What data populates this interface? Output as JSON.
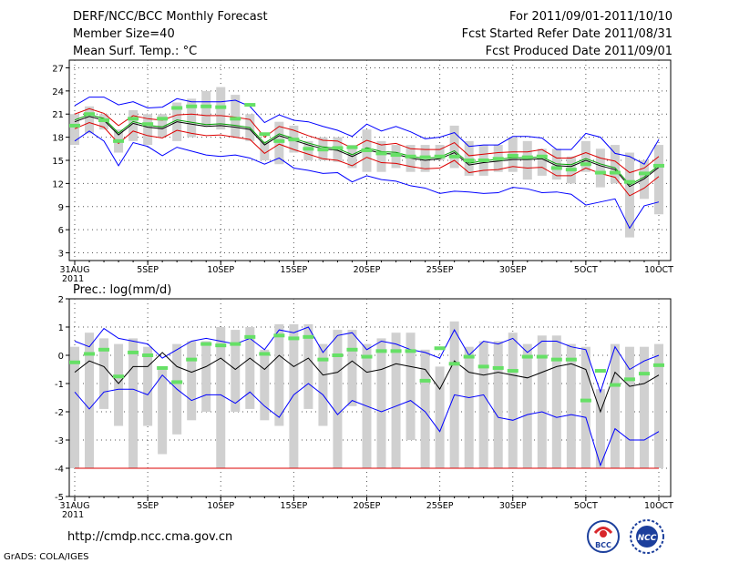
{
  "header": {
    "title": "DERF/NCC/BCC Monthly Forecast",
    "member_size": "Member Size=40",
    "variable": "Mean Surf. Temp.: °C",
    "period": "For 2011/09/01-2011/10/10",
    "start_date": "Fcst Started Refer Date 2011/08/31",
    "produced_date": "Fcst Produced Date 2011/09/01"
  },
  "footer": {
    "url": "http://cmdp.ncc.cma.gov.cn",
    "credit": "GrADS: COLA/IGES",
    "logo_bcc": "BCC",
    "logo_ncc": "NCC"
  },
  "colors": {
    "max_line": "#0000ff",
    "min_line": "#dd0000",
    "mean_line": "#000000",
    "member_line": "#00a000",
    "bar": "#d0d0d0",
    "marker": "#66e066"
  },
  "chart_data": [
    {
      "type": "line",
      "title": "Mean Surf. Temp.: °C",
      "x": [
        0,
        1,
        2,
        3,
        4,
        5,
        6,
        7,
        8,
        9,
        10,
        11,
        12,
        13,
        14,
        15,
        16,
        17,
        18,
        19,
        20,
        21,
        22,
        23,
        24,
        25,
        26,
        27,
        28,
        29,
        30,
        31,
        32,
        33,
        34,
        35,
        36,
        37,
        38,
        39,
        40
      ],
      "x_tick_labels": [
        "31AUG\n2011",
        "5SEP",
        "10SEP",
        "15SEP",
        "20SEP",
        "25SEP",
        "30SEP",
        "5OCT",
        "10OCT"
      ],
      "x_tick_positions": [
        0,
        5,
        10,
        15,
        20,
        25,
        30,
        35,
        40
      ],
      "ylim": [
        2,
        28
      ],
      "y_ticks": [
        3,
        6,
        9,
        12,
        15,
        18,
        21,
        24,
        27
      ],
      "grid": true,
      "series": [
        {
          "name": "max",
          "values": [
            22.1,
            23.2,
            23.2,
            22.2,
            22.6,
            21.8,
            21.9,
            23.0,
            22.6,
            22.6,
            22.6,
            22.8,
            22.0,
            19.9,
            20.9,
            20.2,
            20.0,
            19.4,
            18.9,
            18.1,
            19.7,
            18.8,
            19.4,
            18.7,
            17.8,
            18.0,
            18.6,
            16.8,
            17.0,
            17.0,
            18.1,
            18.1,
            17.9,
            16.4,
            16.4,
            18.5,
            18.0,
            15.9,
            15.5,
            14.5,
            17.7
          ]
        },
        {
          "name": "p90",
          "values": [
            21.0,
            21.7,
            21.1,
            19.5,
            20.8,
            20.4,
            20.2,
            20.9,
            21.0,
            20.8,
            20.8,
            20.6,
            20.3,
            18.0,
            19.4,
            18.9,
            18.2,
            17.6,
            17.5,
            16.6,
            17.6,
            17.0,
            17.2,
            16.5,
            16.4,
            16.4,
            17.3,
            15.6,
            15.8,
            16.0,
            16.1,
            16.1,
            16.4,
            15.3,
            15.3,
            16.0,
            15.3,
            14.9,
            13.4,
            14.0,
            15.5
          ]
        },
        {
          "name": "mean",
          "values": [
            20.0,
            20.7,
            20.2,
            18.3,
            19.8,
            19.3,
            19.1,
            20.0,
            19.7,
            19.4,
            19.5,
            19.3,
            19.0,
            17.0,
            18.2,
            17.6,
            17.0,
            16.5,
            16.3,
            15.5,
            16.4,
            15.9,
            15.8,
            15.3,
            15.0,
            15.2,
            16.0,
            14.4,
            14.7,
            14.9,
            15.1,
            15.1,
            15.2,
            14.3,
            14.2,
            15.0,
            14.3,
            13.8,
            11.6,
            12.6,
            14.1
          ]
        },
        {
          "name": "p10",
          "values": [
            19.1,
            19.9,
            19.3,
            17.2,
            18.8,
            18.2,
            17.9,
            18.9,
            18.5,
            18.2,
            18.3,
            18.0,
            17.7,
            15.9,
            17.1,
            16.4,
            15.8,
            15.2,
            15.0,
            14.3,
            15.4,
            14.7,
            14.6,
            14.2,
            13.9,
            14.0,
            15.0,
            13.4,
            13.7,
            13.8,
            14.2,
            14.0,
            14.1,
            13.0,
            13.0,
            14.0,
            13.3,
            12.8,
            10.4,
            11.4,
            12.9
          ]
        },
        {
          "name": "min",
          "values": [
            17.5,
            18.8,
            17.5,
            14.3,
            17.3,
            16.8,
            15.6,
            16.7,
            16.2,
            15.7,
            15.5,
            15.7,
            15.3,
            14.5,
            15.3,
            14.0,
            13.7,
            13.3,
            13.4,
            12.2,
            13.0,
            12.5,
            12.3,
            11.7,
            11.4,
            10.7,
            11.0,
            10.9,
            10.7,
            10.8,
            11.5,
            11.3,
            10.8,
            10.9,
            10.6,
            9.2,
            9.6,
            10.0,
            6.2,
            9.1,
            9.6
          ]
        }
      ],
      "bars": {
        "low": [
          17,
          18.5,
          19,
          16,
          17.5,
          17,
          18,
          17.5,
          18,
          19.5,
          19,
          18,
          17.5,
          15,
          14.5,
          16,
          15,
          15,
          14.8,
          14,
          13.5,
          13.5,
          14,
          13.5,
          13.5,
          15,
          14,
          13,
          13,
          13.5,
          13.5,
          12.5,
          13,
          12.5,
          12,
          13.5,
          11.5,
          12,
          5,
          10,
          8
        ],
        "high": [
          21,
          22,
          21,
          19,
          21.5,
          21,
          21,
          22.5,
          23,
          24,
          24.5,
          23.5,
          21,
          17.5,
          20,
          19.5,
          17.5,
          18,
          18,
          17,
          19,
          17.5,
          17,
          17,
          17,
          17,
          19.5,
          17.5,
          17,
          17,
          18,
          17.5,
          16.5,
          16.5,
          15.5,
          17.5,
          16.5,
          17,
          16,
          15,
          17
        ]
      },
      "markers": [
        19.5,
        21.0,
        20.2,
        17.5,
        20.4,
        19.7,
        20.4,
        21.8,
        22.0,
        22.0,
        21.9,
        20.4,
        22.2,
        18.4,
        17.5,
        17.7,
        16.5,
        16.4,
        16.6,
        16.7,
        16.3,
        15.9,
        15.7,
        15.5,
        15.4,
        15.5,
        15.5,
        15.0,
        15.0,
        15.2,
        15.6,
        15.4,
        15.5,
        14.0,
        13.8,
        14.5,
        13.4,
        13.4,
        12.2,
        13.3,
        14.3
      ]
    },
    {
      "type": "line",
      "title": "Prec.: log(mm/d)",
      "x": [
        0,
        1,
        2,
        3,
        4,
        5,
        6,
        7,
        8,
        9,
        10,
        11,
        12,
        13,
        14,
        15,
        16,
        17,
        18,
        19,
        20,
        21,
        22,
        23,
        24,
        25,
        26,
        27,
        28,
        29,
        30,
        31,
        32,
        33,
        34,
        35,
        36,
        37,
        38,
        39,
        40
      ],
      "x_tick_labels": [
        "31AUG\n2011",
        "5SEP",
        "10SEP",
        "15SEP",
        "20SEP",
        "25SEP",
        "30SEP",
        "5OCT",
        "10OCT"
      ],
      "x_tick_positions": [
        0,
        5,
        10,
        15,
        20,
        25,
        30,
        35,
        40
      ],
      "ylim": [
        -5,
        2
      ],
      "y_ticks": [
        -5,
        -4,
        -3,
        -2,
        -1,
        0,
        1,
        2
      ],
      "grid": true,
      "series": [
        {
          "name": "max",
          "values": [
            0.5,
            0.3,
            0.95,
            0.6,
            0.5,
            0.4,
            -0.1,
            0.2,
            0.5,
            0.6,
            0.5,
            0.4,
            0.6,
            0.2,
            0.9,
            0.8,
            1.0,
            0.1,
            0.7,
            0.8,
            0.2,
            0.5,
            0.4,
            0.2,
            0.1,
            -0.1,
            0.9,
            0.0,
            0.5,
            0.4,
            0.6,
            0.1,
            0.5,
            0.5,
            0.3,
            0.2,
            -1.3,
            0.3,
            -0.5,
            -0.2,
            0.0
          ]
        },
        {
          "name": "mean",
          "values": [
            -0.6,
            -0.2,
            -0.4,
            -1.0,
            -0.4,
            -0.4,
            0.1,
            -0.4,
            -0.6,
            -0.4,
            -0.1,
            -0.5,
            -0.1,
            -0.5,
            0.0,
            -0.4,
            -0.1,
            -0.7,
            -0.6,
            -0.2,
            -0.6,
            -0.5,
            -0.3,
            -0.4,
            -0.5,
            -1.2,
            -0.2,
            -0.6,
            -0.7,
            -0.6,
            -0.7,
            -0.8,
            -0.6,
            -0.4,
            -0.3,
            -0.5,
            -2.0,
            -0.6,
            -1.1,
            -1.0,
            -0.7
          ]
        },
        {
          "name": "min",
          "values": [
            -1.3,
            -1.9,
            -1.3,
            -1.2,
            -1.2,
            -1.4,
            -0.7,
            -1.2,
            -1.6,
            -1.4,
            -1.4,
            -1.7,
            -1.3,
            -1.8,
            -2.2,
            -1.4,
            -1.0,
            -1.4,
            -2.1,
            -1.6,
            -1.8,
            -2.0,
            -1.8,
            -1.6,
            -2.0,
            -2.7,
            -1.4,
            -1.5,
            -1.4,
            -2.2,
            -2.3,
            -2.1,
            -2.0,
            -2.2,
            -2.1,
            -2.2,
            -3.9,
            -2.6,
            -3.0,
            -3.0,
            -2.7
          ]
        },
        {
          "name": "floor",
          "values": [
            -4,
            -4,
            -4,
            -4,
            -4,
            -4,
            -4,
            -4,
            -4,
            -4,
            -4,
            -4,
            -4,
            -4,
            -4,
            -4,
            -4,
            -4,
            -4,
            -4,
            -4,
            -4,
            -4,
            -4,
            -4,
            -4,
            -4,
            -4,
            -4,
            -4,
            -4,
            -4,
            -4,
            -4,
            -4,
            -4,
            -4,
            -4,
            -4,
            -4,
            -4
          ]
        }
      ],
      "bars": {
        "low": [
          -4,
          -4,
          -1.9,
          -2.5,
          -4,
          -2.5,
          -3.5,
          -2.8,
          -2.3,
          -2.0,
          -4,
          -2.0,
          -1.9,
          -2.3,
          -2.5,
          -4,
          -1.9,
          -2.5,
          -4,
          -1.8,
          -4,
          -4,
          -4,
          -3.0,
          -4,
          -4,
          -4,
          -4,
          -4,
          -4,
          -4,
          -4,
          -4,
          -4,
          -4,
          -4,
          -4,
          -4,
          -4,
          -4,
          -4
        ],
        "high": [
          0.3,
          0.8,
          0.6,
          0.4,
          0.6,
          0.3,
          -0.4,
          0.4,
          0.5,
          0.5,
          1.0,
          0.9,
          1.0,
          0.2,
          1.1,
          1.1,
          1.1,
          0.4,
          0.9,
          0.9,
          0.4,
          0.6,
          0.8,
          0.8,
          0.2,
          -0.4,
          1.2,
          0.3,
          0.5,
          0.5,
          0.8,
          0.4,
          0.7,
          0.7,
          0.4,
          0.3,
          -1.2,
          0.4,
          0.3,
          0.3,
          0.4
        ]
      },
      "markers": [
        -0.25,
        0.05,
        0.2,
        -0.75,
        0.1,
        0.0,
        -0.45,
        -0.95,
        -0.15,
        0.4,
        0.35,
        0.4,
        0.65,
        0.05,
        0.7,
        0.6,
        0.65,
        -0.15,
        0.0,
        0.2,
        -0.05,
        0.15,
        0.15,
        0.15,
        -0.9,
        0.25,
        -0.3,
        -0.05,
        -0.4,
        -0.45,
        -0.55,
        -0.05,
        -0.05,
        -0.15,
        -0.15,
        -1.6,
        -0.55,
        -1.05,
        -0.85,
        -0.65,
        -0.35
      ]
    }
  ]
}
